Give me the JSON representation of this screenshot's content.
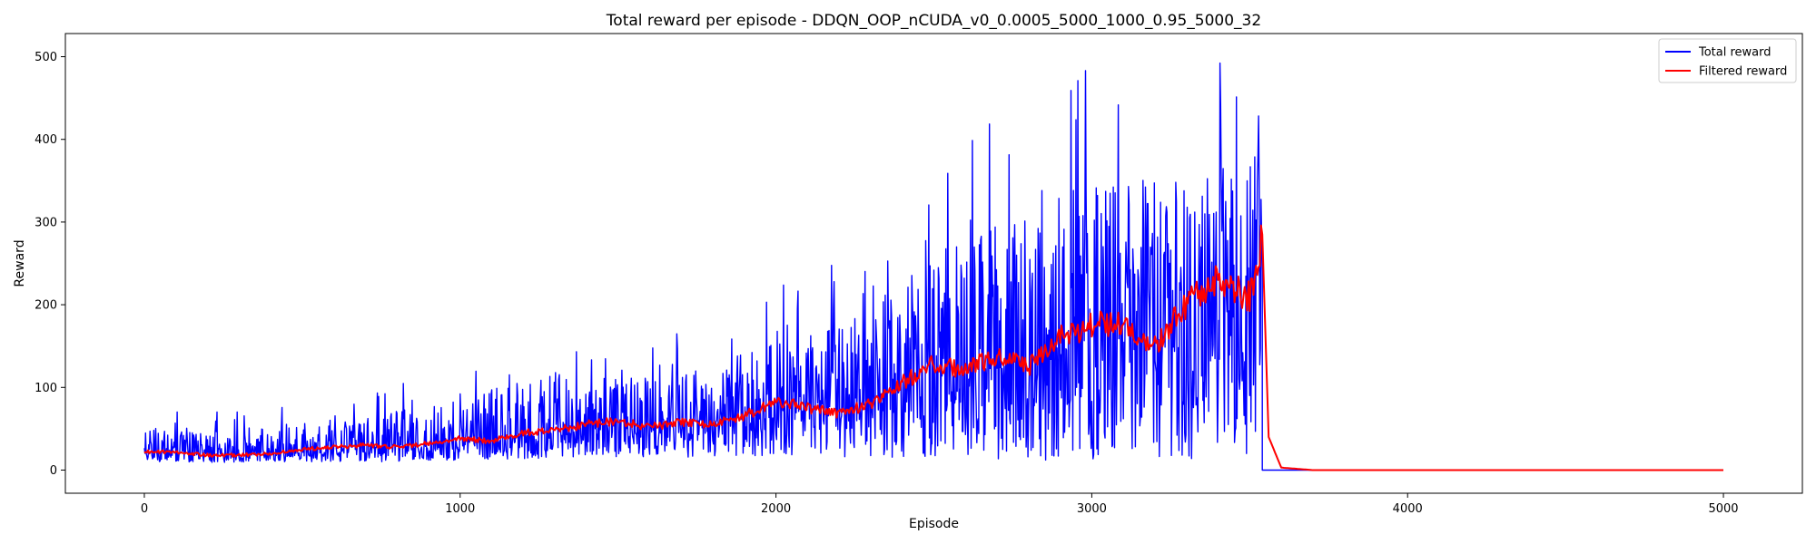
{
  "chart_data": {
    "type": "line",
    "title": "Total reward per episode - DDQN_OOP_nCUDA_v0_0.0005_5000_1000_0.95_5000_32",
    "xlabel": "Episode",
    "ylabel": "Reward",
    "xlim": [
      -250,
      5250
    ],
    "ylim": [
      -28,
      528
    ],
    "xticks": [
      0,
      1000,
      2000,
      3000,
      4000,
      5000
    ],
    "yticks": [
      0,
      100,
      200,
      300,
      400,
      500
    ],
    "grid": false,
    "legend_position": "top-right",
    "total_episodes": 5000,
    "training_stopped_episode": 3540,
    "series": [
      {
        "name": "Total reward",
        "color": "#0000ff",
        "envelope_x": [
          0,
          250,
          500,
          750,
          1000,
          1250,
          1500,
          1750,
          2000,
          2250,
          2500,
          2750,
          3000,
          3250,
          3400,
          3540
        ],
        "envelope_mean": [
          22,
          20,
          25,
          30,
          35,
          45,
          55,
          60,
          75,
          85,
          115,
          130,
          165,
          175,
          205,
          240
        ],
        "envelope_low": [
          10,
          9,
          10,
          10,
          12,
          14,
          15,
          15,
          18,
          15,
          15,
          12,
          12,
          15,
          10,
          10
        ],
        "envelope_high": [
          75,
          70,
          85,
          100,
          125,
          175,
          160,
          170,
          225,
          260,
          375,
          450,
          500,
          500,
          500,
          500
        ],
        "after_stop_value": 0
      },
      {
        "name": "Filtered reward",
        "color": "#ff0000",
        "x": [
          0,
          100,
          200,
          300,
          400,
          500,
          600,
          700,
          800,
          900,
          1000,
          1100,
          1200,
          1300,
          1400,
          1500,
          1600,
          1700,
          1800,
          1900,
          2000,
          2100,
          2200,
          2300,
          2400,
          2500,
          2600,
          2700,
          2800,
          2900,
          3000,
          3100,
          3200,
          3300,
          3400,
          3500,
          3540,
          3560,
          3600,
          3700,
          4000,
          5000
        ],
        "values": [
          22,
          22,
          18,
          18,
          20,
          25,
          28,
          30,
          28,
          32,
          38,
          35,
          45,
          48,
          55,
          60,
          52,
          58,
          55,
          65,
          85,
          75,
          68,
          80,
          105,
          130,
          120,
          140,
          125,
          160,
          175,
          180,
          150,
          200,
          230,
          210,
          285,
          40,
          3,
          0,
          0,
          0
        ]
      }
    ]
  }
}
